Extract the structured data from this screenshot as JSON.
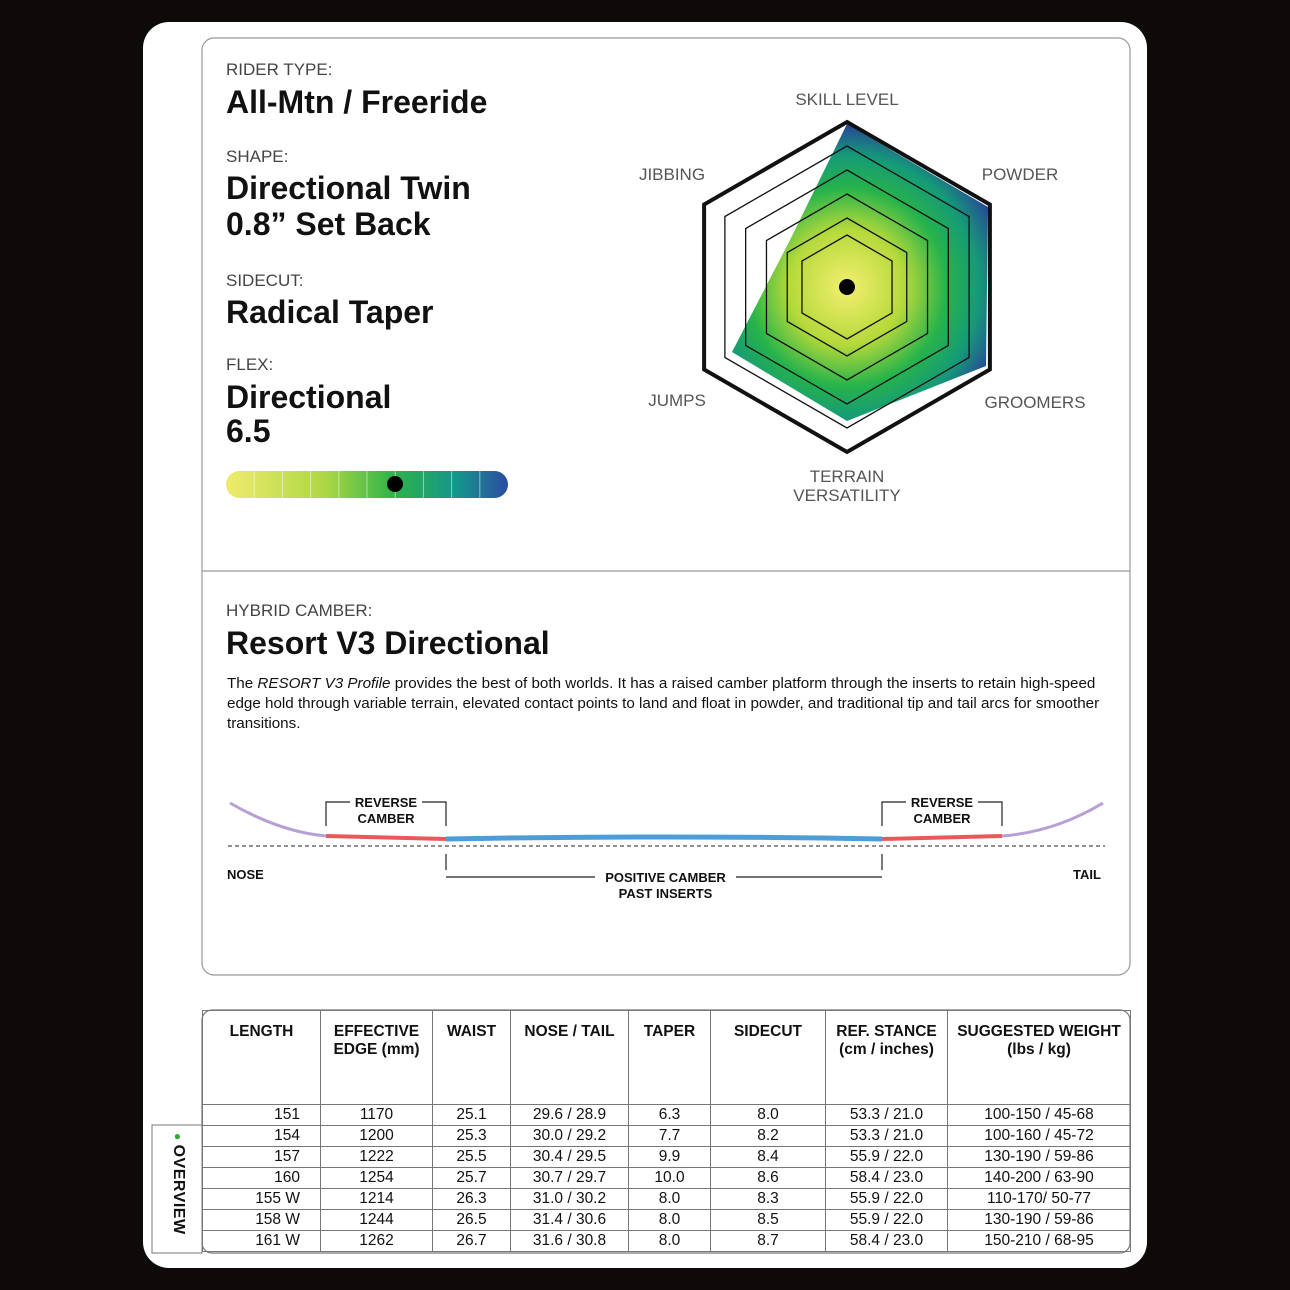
{
  "rider_type": {
    "label": "RIDER TYPE:",
    "value": "All-Mtn / Freeride"
  },
  "shape": {
    "label": "SHAPE:",
    "lines": [
      "Directional Twin",
      "0.8” Set Back"
    ]
  },
  "sidecut": {
    "label": "SIDECUT:",
    "value": "Radical Taper"
  },
  "flex": {
    "label": "FLEX:",
    "lines": [
      "Directional",
      "6.5"
    ]
  },
  "radar": {
    "axes": [
      [
        "SKILL LEVEL"
      ],
      [
        "POWDER"
      ],
      [
        "GROOMERS"
      ],
      [
        "TERRAIN",
        "VERSATILITY"
      ],
      [
        "JUMPS"
      ],
      [
        "JIBBING"
      ]
    ]
  },
  "camber": {
    "label": "HYBRID CAMBER:",
    "title": "Resort V3 Directional",
    "description": [
      "The ",
      "RESORT V3 Profile",
      " provides the best of both worlds. It has a raised camber platform through the inserts to retain high-speed edge hold through variable terrain, elevated contact points to land and float in powder, and traditional tip and tail arcs for smoother transitions."
    ],
    "diagram": {
      "reverse_left": [
        "REVERSE",
        "CAMBER"
      ],
      "reverse_right": [
        "REVERSE",
        "CAMBER"
      ],
      "positive": [
        "POSITIVE CAMBER",
        "PAST INSERTS"
      ],
      "nose": "NOSE",
      "tail": "TAIL"
    }
  },
  "table": {
    "headers": [
      [
        "LENGTH"
      ],
      [
        "EFFECTIVE",
        "EDGE (mm)"
      ],
      [
        "WAIST"
      ],
      [
        "NOSE / TAIL"
      ],
      [
        "TAPER"
      ],
      [
        "SIDECUT"
      ],
      [
        "REF. STANCE",
        "(cm / inches)"
      ],
      [
        "SUGGESTED WEIGHT",
        "(lbs / kg)"
      ]
    ],
    "rows": [
      [
        "151",
        "1170",
        "25.1",
        "29.6 / 28.9",
        "6.3",
        "8.0",
        "53.3 / 21.0",
        "100-150 / 45-68"
      ],
      [
        "154",
        "1200",
        "25.3",
        "30.0 / 29.2",
        "7.7",
        "8.2",
        "53.3 / 21.0",
        "100-160 / 45-72"
      ],
      [
        "157",
        "1222",
        "25.5",
        "30.4 / 29.5",
        "9.9",
        "8.4",
        "55.9 / 22.0",
        "130-190 / 59-86"
      ],
      [
        "160",
        "1254",
        "25.7",
        "30.7 / 29.7",
        "10.0",
        "8.6",
        "58.4 / 23.0",
        "140-200 / 63-90"
      ],
      [
        "155 W",
        "1214",
        "26.3",
        "31.0 / 30.2",
        "8.0",
        "8.3",
        "55.9 / 22.0",
        "110-170/ 50-77"
      ],
      [
        "158 W",
        "1244",
        "26.5",
        "31.4 / 30.6",
        "8.0",
        "8.5",
        "55.9 / 22.0",
        "130-190 / 59-86"
      ],
      [
        "161 W",
        "1262",
        "26.7",
        "31.6 / 30.8",
        "8.0",
        "8.7",
        "58.4 / 23.0",
        "150-210 / 68-95"
      ]
    ]
  },
  "side_tab": "OVERVIEW"
}
